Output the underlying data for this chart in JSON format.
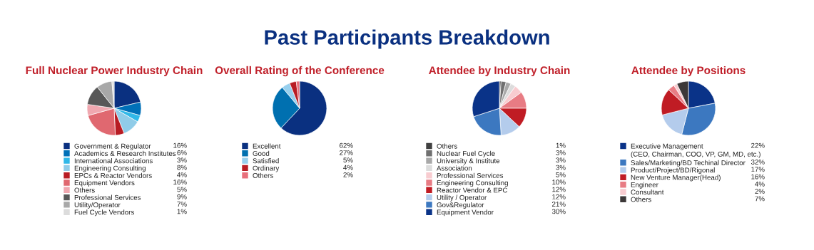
{
  "chart_data": [
    {
      "type": "pie",
      "title": "Full Nuclear Power Industry Chain",
      "annotations": [
        "Past Participants Breakdown"
      ],
      "legend": "bottom",
      "categories": [
        "Government & Regulator",
        "Academics & Research Institutes",
        "International Associations",
        "Engineering Consulting",
        "EPCs & Reactor Vendors",
        "Equipment Vendors",
        "Others",
        "Professional Services",
        "Utility/Operator",
        "Fuel Cycle Vendors"
      ],
      "values": [
        16,
        6,
        3,
        8,
        4,
        16,
        5,
        9,
        7,
        1
      ],
      "value_labels": [
        "16%",
        "6%",
        "3%",
        "8%",
        "4%",
        "16%",
        "5%",
        "9%",
        "7%",
        "1%"
      ],
      "colors": [
        "#0a3080",
        "#0070b8",
        "#30b8e8",
        "#90cce8",
        "#b81c24",
        "#e06870",
        "#f0a8b0",
        "#585858",
        "#a8a8a8",
        "#dcdcdc"
      ]
    },
    {
      "type": "pie",
      "title": "Overall Rating of the Conference",
      "legend": "bottom",
      "categories": [
        "Excellent",
        "Good",
        "Satisfied",
        "Ordinary",
        "Others"
      ],
      "values": [
        62,
        27,
        5,
        4,
        2
      ],
      "value_labels": [
        "62%",
        "27%",
        "5%",
        "4%",
        "2%"
      ],
      "colors": [
        "#0a3080",
        "#0070b0",
        "#98d0ee",
        "#b81c24",
        "#e8707c"
      ]
    },
    {
      "type": "pie",
      "title": "Attendee by Industry Chain",
      "legend": "bottom",
      "categories": [
        "Others",
        "Nuclear Fuel Cycle",
        "University & Institute",
        "Association",
        "Professional Services",
        "Engineering Consulting",
        "Reactor Vendor & EPC",
        "Utility / Operator",
        "Gov&Regulator",
        "Equipment Vendor"
      ],
      "values": [
        1,
        3,
        3,
        3,
        5,
        10,
        12,
        12,
        21,
        30
      ],
      "value_labels": [
        "1%",
        "3%",
        "3%",
        "3%",
        "5%",
        "10%",
        "12%",
        "12%",
        "21%",
        "30%"
      ],
      "colors": [
        "#404040",
        "#707070",
        "#a8a8a8",
        "#dcdcdc",
        "#f8ccd0",
        "#e87c84",
        "#c01c24",
        "#b4ccec",
        "#3c78c0",
        "#0a3388"
      ]
    },
    {
      "type": "pie",
      "title": "Attendee by Positions",
      "legend": "bottom",
      "categories": [
        "Executive Management\n(CEO, Chairman, COO, VP, GM, MD, etc.)",
        "Sales/Marketing/BD Techinal Director",
        "Product/Project/BD/Rigonal",
        "New Venture Manager(Head)",
        "Engineer",
        "Consultant",
        "Others"
      ],
      "values": [
        22,
        32,
        17,
        16,
        4,
        2,
        7
      ],
      "value_labels": [
        "22%",
        "32%",
        "17%",
        "16%",
        "4%",
        "2%",
        "7%"
      ],
      "colors": [
        "#0a3388",
        "#3c78c0",
        "#b4ccec",
        "#c01c24",
        "#e87c84",
        "#f8ccd0",
        "#3c3838"
      ]
    }
  ]
}
